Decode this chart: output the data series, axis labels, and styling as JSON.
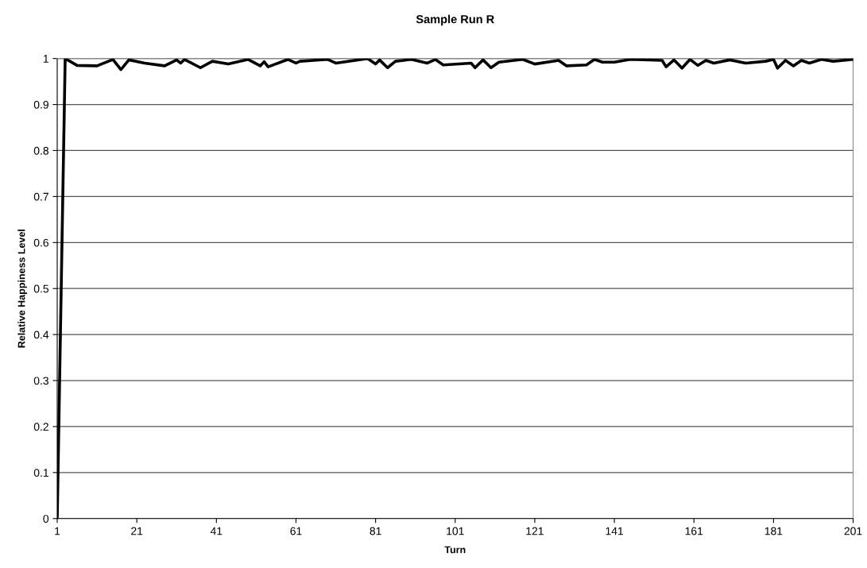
{
  "chart_data": {
    "type": "line",
    "title": "Sample Run R",
    "xlabel": "Turn",
    "ylabel": "Relative Happiness Level",
    "xlim": [
      1,
      201
    ],
    "xticks": [
      1,
      21,
      41,
      61,
      81,
      101,
      121,
      141,
      161,
      181,
      201
    ],
    "ylim": [
      0,
      1
    ],
    "yticks": [
      0,
      0.1,
      0.2,
      0.3,
      0.4,
      0.5,
      0.6,
      0.7,
      0.8,
      0.9,
      1
    ],
    "grid": "y",
    "legend": false,
    "marker": "none",
    "line_style": "solid",
    "series": [
      {
        "color": "#000000",
        "x": [
          1,
          3,
          6,
          11,
          15,
          17,
          19,
          23,
          28,
          31,
          32,
          33,
          37,
          40,
          44,
          49,
          52,
          53,
          54,
          59,
          61,
          62,
          69,
          71,
          79,
          81,
          82,
          84,
          86,
          90,
          94,
          96,
          98,
          105,
          106,
          108,
          110,
          112,
          118,
          121,
          127,
          129,
          134,
          136,
          138,
          141,
          145,
          153,
          154,
          156,
          158,
          160,
          162,
          164,
          166,
          170,
          174,
          179,
          181,
          182,
          184,
          186,
          188,
          190,
          193,
          196,
          201
        ],
        "values": [
          0,
          1.0,
          0.985,
          0.984,
          0.998,
          0.976,
          0.997,
          0.99,
          0.984,
          0.997,
          0.99,
          0.998,
          0.98,
          0.994,
          0.988,
          0.998,
          0.984,
          0.993,
          0.982,
          0.998,
          0.99,
          0.994,
          0.998,
          0.99,
          1.0,
          0.988,
          0.997,
          0.98,
          0.994,
          0.998,
          0.99,
          0.998,
          0.986,
          0.99,
          0.98,
          0.997,
          0.98,
          0.992,
          0.998,
          0.988,
          0.996,
          0.984,
          0.986,
          0.998,
          0.992,
          0.992,
          0.998,
          0.996,
          0.982,
          0.997,
          0.979,
          0.998,
          0.985,
          0.996,
          0.99,
          0.997,
          0.99,
          0.994,
          0.998,
          0.979,
          0.996,
          0.984,
          0.996,
          0.99,
          0.998,
          0.994,
          0.998
        ]
      }
    ]
  }
}
